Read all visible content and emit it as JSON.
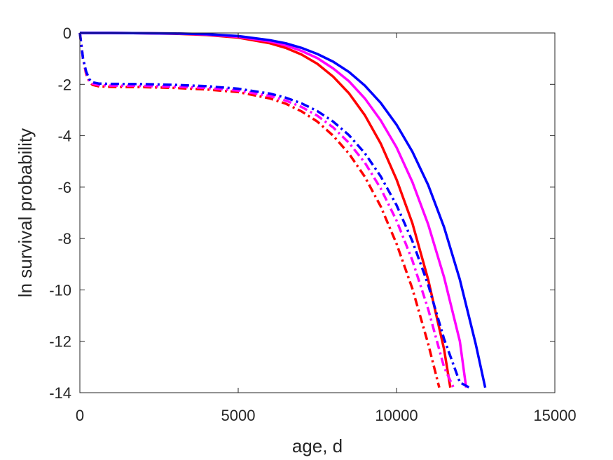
{
  "chart_data": {
    "type": "line",
    "title": "",
    "xlabel": "age, d",
    "ylabel": "ln survival probability",
    "xlim": [
      0,
      15000
    ],
    "ylim": [
      -14,
      0
    ],
    "xticks": [
      0,
      5000,
      10000,
      15000
    ],
    "yticks": [
      0,
      -2,
      -4,
      -6,
      -8,
      -10,
      -12,
      -14
    ],
    "xtick_labels": [
      "0",
      "5000",
      "10000",
      "15000"
    ],
    "ytick_labels": [
      "0",
      "-2",
      "-4",
      "-6",
      "-8",
      "-10",
      "-12",
      "-14"
    ],
    "grid": false,
    "legend": "none",
    "series": [
      {
        "color": "#ff0000",
        "style": "solid",
        "x": [
          0,
          1000,
          2000,
          3000,
          4000,
          5000,
          6000,
          6500,
          7000,
          7500,
          8000,
          8500,
          9000,
          9500,
          10000,
          10500,
          11000,
          11500,
          11700
        ],
        "y": [
          0,
          0,
          -0.01,
          -0.03,
          -0.08,
          -0.18,
          -0.4,
          -0.58,
          -0.84,
          -1.2,
          -1.7,
          -2.35,
          -3.2,
          -4.3,
          -5.7,
          -7.4,
          -9.6,
          -12.3,
          -13.8
        ]
      },
      {
        "color": "#ff00ff",
        "style": "solid",
        "x": [
          0,
          1000,
          2000,
          3000,
          4000,
          5000,
          6000,
          6500,
          7000,
          7500,
          8000,
          8500,
          9000,
          9500,
          10000,
          10500,
          11000,
          11500,
          12000,
          12200
        ],
        "y": [
          0,
          0,
          -0.01,
          -0.02,
          -0.06,
          -0.15,
          -0.33,
          -0.48,
          -0.7,
          -0.98,
          -1.38,
          -1.88,
          -2.55,
          -3.4,
          -4.45,
          -5.8,
          -7.45,
          -9.5,
          -12.0,
          -13.8
        ]
      },
      {
        "color": "#0000ff",
        "style": "solid",
        "x": [
          0,
          1000,
          2000,
          3000,
          4000,
          5000,
          6000,
          6500,
          7000,
          7500,
          8000,
          8500,
          9000,
          9500,
          10000,
          10500,
          11000,
          11500,
          12000,
          12500,
          12800
        ],
        "y": [
          0,
          0,
          -0.01,
          -0.02,
          -0.05,
          -0.12,
          -0.28,
          -0.4,
          -0.58,
          -0.82,
          -1.12,
          -1.52,
          -2.05,
          -2.72,
          -3.57,
          -4.62,
          -5.92,
          -7.55,
          -9.6,
          -12.1,
          -13.8
        ]
      },
      {
        "color": "#ff0000",
        "style": "dashdot",
        "x": [
          0,
          50,
          100,
          200,
          300,
          400,
          600,
          1000,
          2000,
          3000,
          4000,
          5000,
          6000,
          6500,
          7000,
          7500,
          8000,
          8500,
          9000,
          9500,
          10000,
          10500,
          11000,
          11350
        ],
        "y": [
          0,
          -0.5,
          -1.0,
          -1.6,
          -1.9,
          -2.02,
          -2.08,
          -2.1,
          -2.11,
          -2.14,
          -2.2,
          -2.3,
          -2.55,
          -2.75,
          -3.05,
          -3.45,
          -4.0,
          -4.7,
          -5.6,
          -6.75,
          -8.2,
          -9.95,
          -12.1,
          -13.8
        ]
      },
      {
        "color": "#ff00ff",
        "style": "dashdot",
        "x": [
          0,
          50,
          100,
          200,
          300,
          400,
          600,
          1000,
          2000,
          3000,
          4000,
          5000,
          6000,
          6500,
          7000,
          7500,
          8000,
          8500,
          9000,
          9500,
          10000,
          10500,
          11000,
          11500,
          11800
        ],
        "y": [
          0,
          -0.5,
          -1.0,
          -1.55,
          -1.85,
          -1.97,
          -2.03,
          -2.05,
          -2.06,
          -2.09,
          -2.14,
          -2.24,
          -2.45,
          -2.63,
          -2.88,
          -3.22,
          -3.68,
          -4.28,
          -5.05,
          -6.05,
          -7.3,
          -8.85,
          -10.75,
          -13.0,
          -13.8
        ]
      },
      {
        "color": "#0000ff",
        "style": "dashdot",
        "x": [
          0,
          50,
          100,
          200,
          300,
          400,
          600,
          1000,
          2000,
          3000,
          4000,
          5000,
          6000,
          6500,
          7000,
          7500,
          8000,
          8500,
          9000,
          9500,
          10000,
          10500,
          11000,
          11500,
          12000,
          12300
        ],
        "y": [
          0,
          -0.5,
          -1.0,
          -1.5,
          -1.8,
          -1.92,
          -1.97,
          -1.98,
          -1.99,
          -2.02,
          -2.07,
          -2.17,
          -2.36,
          -2.52,
          -2.74,
          -3.04,
          -3.45,
          -3.98,
          -4.68,
          -5.58,
          -6.7,
          -8.1,
          -9.8,
          -11.9,
          -13.6,
          -13.8
        ]
      }
    ]
  }
}
